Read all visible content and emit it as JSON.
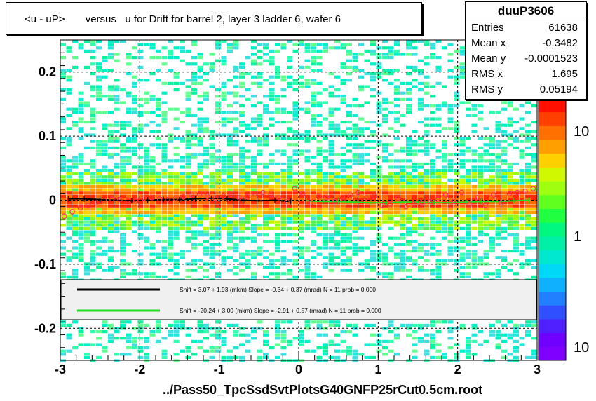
{
  "title": "<u - uP>       versus   u for Drift for barrel 2, layer 3 ladder 6, wafer 6",
  "stats": {
    "name": "duuP3606",
    "rows": [
      {
        "label": "Entries",
        "value": "61638"
      },
      {
        "label": "Mean x",
        "value": "-0.3482"
      },
      {
        "label": "Mean y",
        "value": "-0.0001523"
      },
      {
        "label": "RMS x",
        "value": "1.695"
      },
      {
        "label": "RMS y",
        "value": "0.05194"
      }
    ]
  },
  "legend": [
    {
      "color": "#000000",
      "text": "Shift =    3.07 + 1.93 (mkm) Slope =    -0.34 + 0.37 (mrad)  N = 11 prob = 0.000"
    },
    {
      "color": "#22dd22",
      "text": "Shift =  -20.24 + 3.00 (mkm) Slope =    -2.91 + 0.57 (mrad)  N = 11 prob = 0.000"
    }
  ],
  "footer": "../Pass50_TpcSsdSvtPlotsG40GNFP25rCut0.5cm.root",
  "colorbar": {
    "labels": [
      "10",
      "1",
      "10"
    ],
    "colors": [
      "#8000ff",
      "#7000ff",
      "#5020ff",
      "#3050ff",
      "#2080ff",
      "#10b0ff",
      "#00d8f8",
      "#00e8d0",
      "#00f0a8",
      "#00f880",
      "#20ff40",
      "#60ff20",
      "#a0ff10",
      "#d0f800",
      "#ffd000",
      "#ffa000",
      "#ff7000",
      "#ff4000",
      "#ff1000"
    ]
  },
  "chart_data": {
    "type": "heatmap",
    "xlim": [
      -3,
      3
    ],
    "ylim": [
      -0.25,
      0.25
    ],
    "xticks": [
      "-3",
      "-2",
      "-1",
      "0",
      "1",
      "2",
      "3"
    ],
    "yticks": [
      "0.2",
      "0.1",
      "0",
      "-0.1",
      "-0.2"
    ],
    "grid": true,
    "z_scale": "log",
    "series": [
      {
        "name": "black profile",
        "color": "#000000",
        "x": [
          -2.9,
          -2.7,
          -2.5,
          -2.3,
          -2.1,
          -1.9,
          -1.7,
          -1.5,
          -1.3,
          -1.1,
          -0.9,
          -0.7,
          -0.5,
          -0.3,
          -0.1
        ],
        "y": [
          0.002,
          0.002,
          0.001,
          0.0,
          -0.001,
          0.0,
          0.001,
          0.001,
          0.002,
          0.003,
          0.002,
          0.0,
          -0.001,
          0.0,
          -0.002
        ]
      },
      {
        "name": "green profile",
        "color": "#22dd22",
        "x": [
          0.1,
          0.3,
          0.5,
          0.7,
          0.9,
          1.1,
          1.3,
          1.5,
          1.7,
          1.9,
          2.1,
          2.3,
          2.5,
          2.7,
          2.9
        ],
        "y": [
          -0.001,
          -0.002,
          -0.002,
          -0.003,
          -0.004,
          -0.004,
          -0.003,
          -0.003,
          -0.004,
          -0.004,
          -0.003,
          -0.002,
          -0.002,
          -0.001,
          0.0
        ]
      },
      {
        "name": "red markers",
        "color": "#ff3355",
        "x": [
          -2.95,
          -2.85,
          -2.75,
          -2.65,
          -2.55,
          -2.45,
          -2.35,
          -2.25,
          -2.15,
          -2.05,
          -1.95,
          -1.85,
          -1.75,
          -1.65,
          -1.55,
          -1.45,
          -1.35,
          -1.25,
          -1.15,
          -1.05,
          -0.95,
          -0.85,
          -0.75,
          -0.65,
          -0.55,
          -0.45,
          -0.35,
          -0.25,
          -0.15,
          -0.05,
          0.05,
          0.15,
          0.25,
          0.35,
          0.45,
          0.55,
          0.65,
          0.75,
          0.85,
          0.95,
          1.05,
          1.15,
          1.25,
          1.35,
          1.45,
          1.55,
          1.65,
          1.75,
          1.85,
          1.95,
          2.05,
          2.15,
          2.25,
          2.35,
          2.45,
          2.55,
          2.65,
          2.75,
          2.85,
          2.95
        ],
        "y": [
          -0.025,
          -0.018,
          -0.012,
          -0.008,
          -0.004,
          0.0,
          0.002,
          0.001,
          0.0,
          -0.001,
          0.003,
          0.004,
          0.002,
          0.001,
          0.003,
          0.005,
          0.008,
          0.01,
          0.006,
          0.003,
          0.006,
          0.009,
          0.004,
          0.005,
          0.01,
          0.012,
          0.008,
          0.004,
          -0.002,
          0.018,
          0.01,
          -0.004,
          0.006,
          0.004,
          -0.002,
          0.004,
          0.008,
          0.012,
          0.004,
          0.006,
          -0.008,
          -0.006,
          0.003,
          -0.01,
          -0.006,
          -0.005,
          -0.002,
          0.002,
          0.008,
          -0.002,
          0.012,
          -0.006,
          0.004,
          -0.008,
          0.008,
          -0.004,
          0.01,
          0.012,
          0.014,
          0.018
        ]
      }
    ]
  }
}
